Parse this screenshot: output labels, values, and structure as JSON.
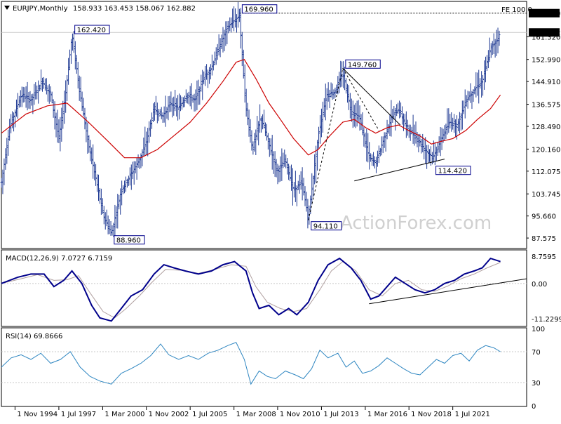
{
  "header": {
    "symbol_text": "EURJPY,Monthly",
    "ohlc_text": "158.933 163.453 158.067 162.882",
    "fe_label": "FE 100.0"
  },
  "watermark": "ActionForex.com",
  "colors": {
    "bars": "#1f3a93",
    "ma": "#cc0000",
    "macd": "#00008b",
    "signal": "#b0a0a0",
    "rsi": "#2e86c1",
    "trendline": "#000000",
    "grid": "#c8c8c8"
  },
  "chart_data": [
    {
      "type": "ohlc",
      "panel": "price",
      "timeframe": "Monthly",
      "ohlc": {
        "open": 158.933,
        "high": 163.453,
        "low": 158.067,
        "close": 162.882
      },
      "ylim": [
        84,
        174
      ],
      "y_ticks": [
        "161.320",
        "152.990",
        "144.910",
        "136.575",
        "128.490",
        "120.160",
        "112.075",
        "103.745",
        "95.660",
        "87.575"
      ],
      "current_price": "162.882",
      "fe_level": "169.960",
      "x_ticks": [
        "1 Nov 1994",
        "1 Jul 1997",
        "1 Mar 2000",
        "1 Nov 2002",
        "1 Jul 2005",
        "1 Mar 2008",
        "1 Nov 2010",
        "1 Jul 2013",
        "1 Mar 2016",
        "1 Nov 2018",
        "1 Jul 2021"
      ],
      "annotations": [
        {
          "text": "162.420",
          "t": 1998.3,
          "value": 162.42
        },
        {
          "text": "88.960",
          "t": 2000.7,
          "value": 88.96
        },
        {
          "text": "169.960",
          "t": 2008.5,
          "value": 169.96
        },
        {
          "text": "94.110",
          "t": 2012.7,
          "value": 94.11
        },
        {
          "text": "149.760",
          "t": 2014.8,
          "value": 149.76
        },
        {
          "text": "114.420",
          "t": 2020.3,
          "value": 114.42
        }
      ],
      "price_path": [
        {
          "t": 1994.0,
          "v": 108
        },
        {
          "t": 1994.5,
          "v": 128
        },
        {
          "t": 1995.2,
          "v": 140
        },
        {
          "t": 1995.8,
          "v": 138
        },
        {
          "t": 1996.5,
          "v": 145
        },
        {
          "t": 1997.0,
          "v": 140
        },
        {
          "t": 1997.5,
          "v": 124
        },
        {
          "t": 1997.9,
          "v": 140
        },
        {
          "t": 1998.3,
          "v": 162
        },
        {
          "t": 1998.8,
          "v": 140
        },
        {
          "t": 1999.3,
          "v": 122
        },
        {
          "t": 1999.8,
          "v": 108
        },
        {
          "t": 2000.2,
          "v": 96
        },
        {
          "t": 2000.7,
          "v": 89
        },
        {
          "t": 2001.3,
          "v": 105
        },
        {
          "t": 2001.8,
          "v": 110
        },
        {
          "t": 2002.3,
          "v": 115
        },
        {
          "t": 2002.8,
          "v": 122
        },
        {
          "t": 2003.3,
          "v": 135
        },
        {
          "t": 2003.8,
          "v": 132
        },
        {
          "t": 2004.3,
          "v": 137
        },
        {
          "t": 2004.8,
          "v": 135
        },
        {
          "t": 2005.3,
          "v": 140
        },
        {
          "t": 2005.8,
          "v": 138
        },
        {
          "t": 2006.3,
          "v": 146
        },
        {
          "t": 2006.8,
          "v": 150
        },
        {
          "t": 2007.3,
          "v": 158
        },
        {
          "t": 2007.8,
          "v": 165
        },
        {
          "t": 2008.5,
          "v": 169
        },
        {
          "t": 2008.9,
          "v": 135
        },
        {
          "t": 2009.3,
          "v": 120
        },
        {
          "t": 2009.8,
          "v": 132
        },
        {
          "t": 2010.3,
          "v": 122
        },
        {
          "t": 2010.8,
          "v": 112
        },
        {
          "t": 2011.3,
          "v": 116
        },
        {
          "t": 2011.8,
          "v": 105
        },
        {
          "t": 2012.3,
          "v": 108
        },
        {
          "t": 2012.7,
          "v": 95
        },
        {
          "t": 2013.3,
          "v": 125
        },
        {
          "t": 2013.8,
          "v": 140
        },
        {
          "t": 2014.3,
          "v": 141
        },
        {
          "t": 2014.8,
          "v": 148
        },
        {
          "t": 2015.3,
          "v": 134
        },
        {
          "t": 2015.8,
          "v": 132
        },
        {
          "t": 2016.4,
          "v": 117
        },
        {
          "t": 2016.8,
          "v": 115
        },
        {
          "t": 2017.3,
          "v": 124
        },
        {
          "t": 2017.8,
          "v": 132
        },
        {
          "t": 2018.2,
          "v": 135
        },
        {
          "t": 2018.7,
          "v": 128
        },
        {
          "t": 2019.2,
          "v": 125
        },
        {
          "t": 2019.8,
          "v": 120
        },
        {
          "t": 2020.3,
          "v": 117
        },
        {
          "t": 2020.8,
          "v": 124
        },
        {
          "t": 2021.3,
          "v": 130
        },
        {
          "t": 2021.8,
          "v": 129
        },
        {
          "t": 2022.3,
          "v": 138
        },
        {
          "t": 2022.8,
          "v": 142
        },
        {
          "t": 2023.3,
          "v": 145
        },
        {
          "t": 2023.8,
          "v": 157
        },
        {
          "t": 2024.4,
          "v": 162
        }
      ],
      "moving_average": [
        {
          "t": 1994.0,
          "v": 126
        },
        {
          "t": 1995.5,
          "v": 133
        },
        {
          "t": 1996.8,
          "v": 136
        },
        {
          "t": 1998.0,
          "v": 137
        },
        {
          "t": 1999.3,
          "v": 130
        },
        {
          "t": 2000.5,
          "v": 123
        },
        {
          "t": 2001.5,
          "v": 117
        },
        {
          "t": 2002.5,
          "v": 117
        },
        {
          "t": 2003.5,
          "v": 120
        },
        {
          "t": 2004.5,
          "v": 125
        },
        {
          "t": 2005.5,
          "v": 130
        },
        {
          "t": 2006.5,
          "v": 137
        },
        {
          "t": 2007.5,
          "v": 145
        },
        {
          "t": 2008.3,
          "v": 152
        },
        {
          "t": 2008.8,
          "v": 153
        },
        {
          "t": 2009.5,
          "v": 146
        },
        {
          "t": 2010.3,
          "v": 137
        },
        {
          "t": 2011.0,
          "v": 131
        },
        {
          "t": 2011.8,
          "v": 124
        },
        {
          "t": 2012.7,
          "v": 118
        },
        {
          "t": 2013.3,
          "v": 120
        },
        {
          "t": 2014.0,
          "v": 125
        },
        {
          "t": 2014.8,
          "v": 130
        },
        {
          "t": 2015.5,
          "v": 131
        },
        {
          "t": 2016.2,
          "v": 128
        },
        {
          "t": 2016.8,
          "v": 126
        },
        {
          "t": 2017.5,
          "v": 128
        },
        {
          "t": 2018.2,
          "v": 129
        },
        {
          "t": 2018.8,
          "v": 127
        },
        {
          "t": 2019.5,
          "v": 125
        },
        {
          "t": 2020.2,
          "v": 122
        },
        {
          "t": 2020.8,
          "v": 123
        },
        {
          "t": 2021.5,
          "v": 124
        },
        {
          "t": 2022.3,
          "v": 127
        },
        {
          "t": 2023.0,
          "v": 131
        },
        {
          "t": 2023.8,
          "v": 135
        },
        {
          "t": 2024.4,
          "v": 140
        }
      ],
      "trendlines": [
        {
          "from": {
            "t": 2014.8,
            "v": 149.76
          },
          "to": {
            "t": 2018.3,
            "v": 129
          }
        },
        {
          "from": {
            "t": 2015.5,
            "v": 108.5
          },
          "to": {
            "t": 2021.0,
            "v": 116.5
          }
        },
        {
          "from": {
            "t": 2012.7,
            "v": 94.11
          },
          "to": {
            "t": 2014.8,
            "v": 149.76
          },
          "dashed": true
        },
        {
          "from": {
            "t": 2014.8,
            "v": 149.76
          },
          "to": {
            "t": 2017.0,
            "v": 127
          },
          "dashed": true
        }
      ]
    },
    {
      "type": "line",
      "panel": "macd",
      "label": "MACD(12,26,9) 7.0727 6.7159",
      "ylim": [
        -13.5,
        10.5
      ],
      "y_ticks": [
        "8.7595",
        "0.00",
        "-11.2299"
      ],
      "macd": [
        {
          "t": 1994.0,
          "v": 0
        },
        {
          "t": 1995.0,
          "v": 2
        },
        {
          "t": 1995.8,
          "v": 3
        },
        {
          "t": 1996.6,
          "v": 3
        },
        {
          "t": 1997.2,
          "v": -1
        },
        {
          "t": 1997.8,
          "v": 1
        },
        {
          "t": 1998.3,
          "v": 4
        },
        {
          "t": 1998.9,
          "v": 0
        },
        {
          "t": 1999.5,
          "v": -7
        },
        {
          "t": 2000.0,
          "v": -11
        },
        {
          "t": 2000.7,
          "v": -12
        },
        {
          "t": 2001.3,
          "v": -8
        },
        {
          "t": 2001.9,
          "v": -4
        },
        {
          "t": 2002.6,
          "v": -2
        },
        {
          "t": 2003.3,
          "v": 3
        },
        {
          "t": 2003.9,
          "v": 6
        },
        {
          "t": 2004.5,
          "v": 5
        },
        {
          "t": 2005.2,
          "v": 4
        },
        {
          "t": 2006.0,
          "v": 3
        },
        {
          "t": 2006.8,
          "v": 4
        },
        {
          "t": 2007.5,
          "v": 6
        },
        {
          "t": 2008.2,
          "v": 7
        },
        {
          "t": 2008.9,
          "v": 4
        },
        {
          "t": 2009.3,
          "v": -3
        },
        {
          "t": 2009.7,
          "v": -8
        },
        {
          "t": 2010.3,
          "v": -7
        },
        {
          "t": 2010.9,
          "v": -10
        },
        {
          "t": 2011.5,
          "v": -8
        },
        {
          "t": 2012.0,
          "v": -10
        },
        {
          "t": 2012.7,
          "v": -6
        },
        {
          "t": 2013.3,
          "v": 1
        },
        {
          "t": 2013.9,
          "v": 6
        },
        {
          "t": 2014.6,
          "v": 8
        },
        {
          "t": 2015.3,
          "v": 5
        },
        {
          "t": 2015.9,
          "v": 1
        },
        {
          "t": 2016.5,
          "v": -5
        },
        {
          "t": 2017.0,
          "v": -4
        },
        {
          "t": 2017.5,
          "v": -1
        },
        {
          "t": 2018.0,
          "v": 2
        },
        {
          "t": 2018.6,
          "v": 0
        },
        {
          "t": 2019.2,
          "v": -2
        },
        {
          "t": 2019.8,
          "v": -3
        },
        {
          "t": 2020.4,
          "v": -2
        },
        {
          "t": 2021.0,
          "v": 0
        },
        {
          "t": 2021.6,
          "v": 1
        },
        {
          "t": 2022.2,
          "v": 3
        },
        {
          "t": 2022.8,
          "v": 4
        },
        {
          "t": 2023.3,
          "v": 5
        },
        {
          "t": 2023.8,
          "v": 8
        },
        {
          "t": 2024.4,
          "v": 7
        }
      ],
      "signal": [
        {
          "t": 1994.0,
          "v": 0
        },
        {
          "t": 1995.2,
          "v": 1.5
        },
        {
          "t": 1996.2,
          "v": 2.8
        },
        {
          "t": 1997.2,
          "v": 1
        },
        {
          "t": 1998.0,
          "v": 1.2
        },
        {
          "t": 1998.7,
          "v": 2.5
        },
        {
          "t": 1999.4,
          "v": -3
        },
        {
          "t": 2000.2,
          "v": -9
        },
        {
          "t": 2000.9,
          "v": -11
        },
        {
          "t": 2001.6,
          "v": -8
        },
        {
          "t": 2002.4,
          "v": -4
        },
        {
          "t": 2003.2,
          "v": 0.5
        },
        {
          "t": 2004.0,
          "v": 4.5
        },
        {
          "t": 2005.0,
          "v": 4.2
        },
        {
          "t": 2006.0,
          "v": 3.2
        },
        {
          "t": 2007.0,
          "v": 4.5
        },
        {
          "t": 2008.0,
          "v": 6
        },
        {
          "t": 2008.9,
          "v": 5.5
        },
        {
          "t": 2009.5,
          "v": -1
        },
        {
          "t": 2010.2,
          "v": -6
        },
        {
          "t": 2011.0,
          "v": -8
        },
        {
          "t": 2011.8,
          "v": -9
        },
        {
          "t": 2012.6,
          "v": -8
        },
        {
          "t": 2013.4,
          "v": -2
        },
        {
          "t": 2014.1,
          "v": 4
        },
        {
          "t": 2014.8,
          "v": 7
        },
        {
          "t": 2015.6,
          "v": 4
        },
        {
          "t": 2016.4,
          "v": -2
        },
        {
          "t": 2017.2,
          "v": -4
        },
        {
          "t": 2018.0,
          "v": 0
        },
        {
          "t": 2018.8,
          "v": 1
        },
        {
          "t": 2019.6,
          "v": -2
        },
        {
          "t": 2020.4,
          "v": -2.5
        },
        {
          "t": 2021.2,
          "v": -0.8
        },
        {
          "t": 2022.0,
          "v": 1.5
        },
        {
          "t": 2022.8,
          "v": 3
        },
        {
          "t": 2023.6,
          "v": 5
        },
        {
          "t": 2024.4,
          "v": 6.7
        }
      ],
      "trendline": {
        "from": {
          "t": 2016.4,
          "v": -6.5
        },
        "to": {
          "t": 2026.0,
          "v": 1.5
        }
      }
    },
    {
      "type": "line",
      "panel": "rsi",
      "label": "RSI(14) 69.8666",
      "ylim": [
        0,
        100
      ],
      "y_ticks": [
        "100",
        "70",
        "30",
        "0"
      ],
      "levels": [
        70,
        30
      ],
      "values": [
        {
          "t": 1994.0,
          "v": 50
        },
        {
          "t": 1994.6,
          "v": 62
        },
        {
          "t": 1995.2,
          "v": 66
        },
        {
          "t": 1995.8,
          "v": 60
        },
        {
          "t": 1996.4,
          "v": 68
        },
        {
          "t": 1997.0,
          "v": 55
        },
        {
          "t": 1997.6,
          "v": 60
        },
        {
          "t": 1998.2,
          "v": 70
        },
        {
          "t": 1998.8,
          "v": 50
        },
        {
          "t": 1999.4,
          "v": 38
        },
        {
          "t": 2000.0,
          "v": 32
        },
        {
          "t": 2000.7,
          "v": 28
        },
        {
          "t": 2001.3,
          "v": 42
        },
        {
          "t": 2001.9,
          "v": 48
        },
        {
          "t": 2002.5,
          "v": 55
        },
        {
          "t": 2003.1,
          "v": 65
        },
        {
          "t": 2003.7,
          "v": 80
        },
        {
          "t": 2004.2,
          "v": 66
        },
        {
          "t": 2004.8,
          "v": 60
        },
        {
          "t": 2005.4,
          "v": 65
        },
        {
          "t": 2006.0,
          "v": 60
        },
        {
          "t": 2006.6,
          "v": 68
        },
        {
          "t": 2007.2,
          "v": 72
        },
        {
          "t": 2007.8,
          "v": 78
        },
        {
          "t": 2008.3,
          "v": 82
        },
        {
          "t": 2008.8,
          "v": 60
        },
        {
          "t": 2009.2,
          "v": 28
        },
        {
          "t": 2009.7,
          "v": 45
        },
        {
          "t": 2010.2,
          "v": 38
        },
        {
          "t": 2010.7,
          "v": 35
        },
        {
          "t": 2011.3,
          "v": 45
        },
        {
          "t": 2011.9,
          "v": 40
        },
        {
          "t": 2012.4,
          "v": 35
        },
        {
          "t": 2012.9,
          "v": 48
        },
        {
          "t": 2013.4,
          "v": 72
        },
        {
          "t": 2013.9,
          "v": 62
        },
        {
          "t": 2014.5,
          "v": 68
        },
        {
          "t": 2015.0,
          "v": 50
        },
        {
          "t": 2015.5,
          "v": 58
        },
        {
          "t": 2016.0,
          "v": 42
        },
        {
          "t": 2016.5,
          "v": 45
        },
        {
          "t": 2017.0,
          "v": 52
        },
        {
          "t": 2017.5,
          "v": 62
        },
        {
          "t": 2018.0,
          "v": 55
        },
        {
          "t": 2018.5,
          "v": 48
        },
        {
          "t": 2019.0,
          "v": 42
        },
        {
          "t": 2019.5,
          "v": 40
        },
        {
          "t": 2020.0,
          "v": 50
        },
        {
          "t": 2020.5,
          "v": 60
        },
        {
          "t": 2021.0,
          "v": 55
        },
        {
          "t": 2021.5,
          "v": 65
        },
        {
          "t": 2022.0,
          "v": 68
        },
        {
          "t": 2022.5,
          "v": 58
        },
        {
          "t": 2023.0,
          "v": 72
        },
        {
          "t": 2023.5,
          "v": 78
        },
        {
          "t": 2024.0,
          "v": 75
        },
        {
          "t": 2024.4,
          "v": 70
        }
      ]
    }
  ]
}
